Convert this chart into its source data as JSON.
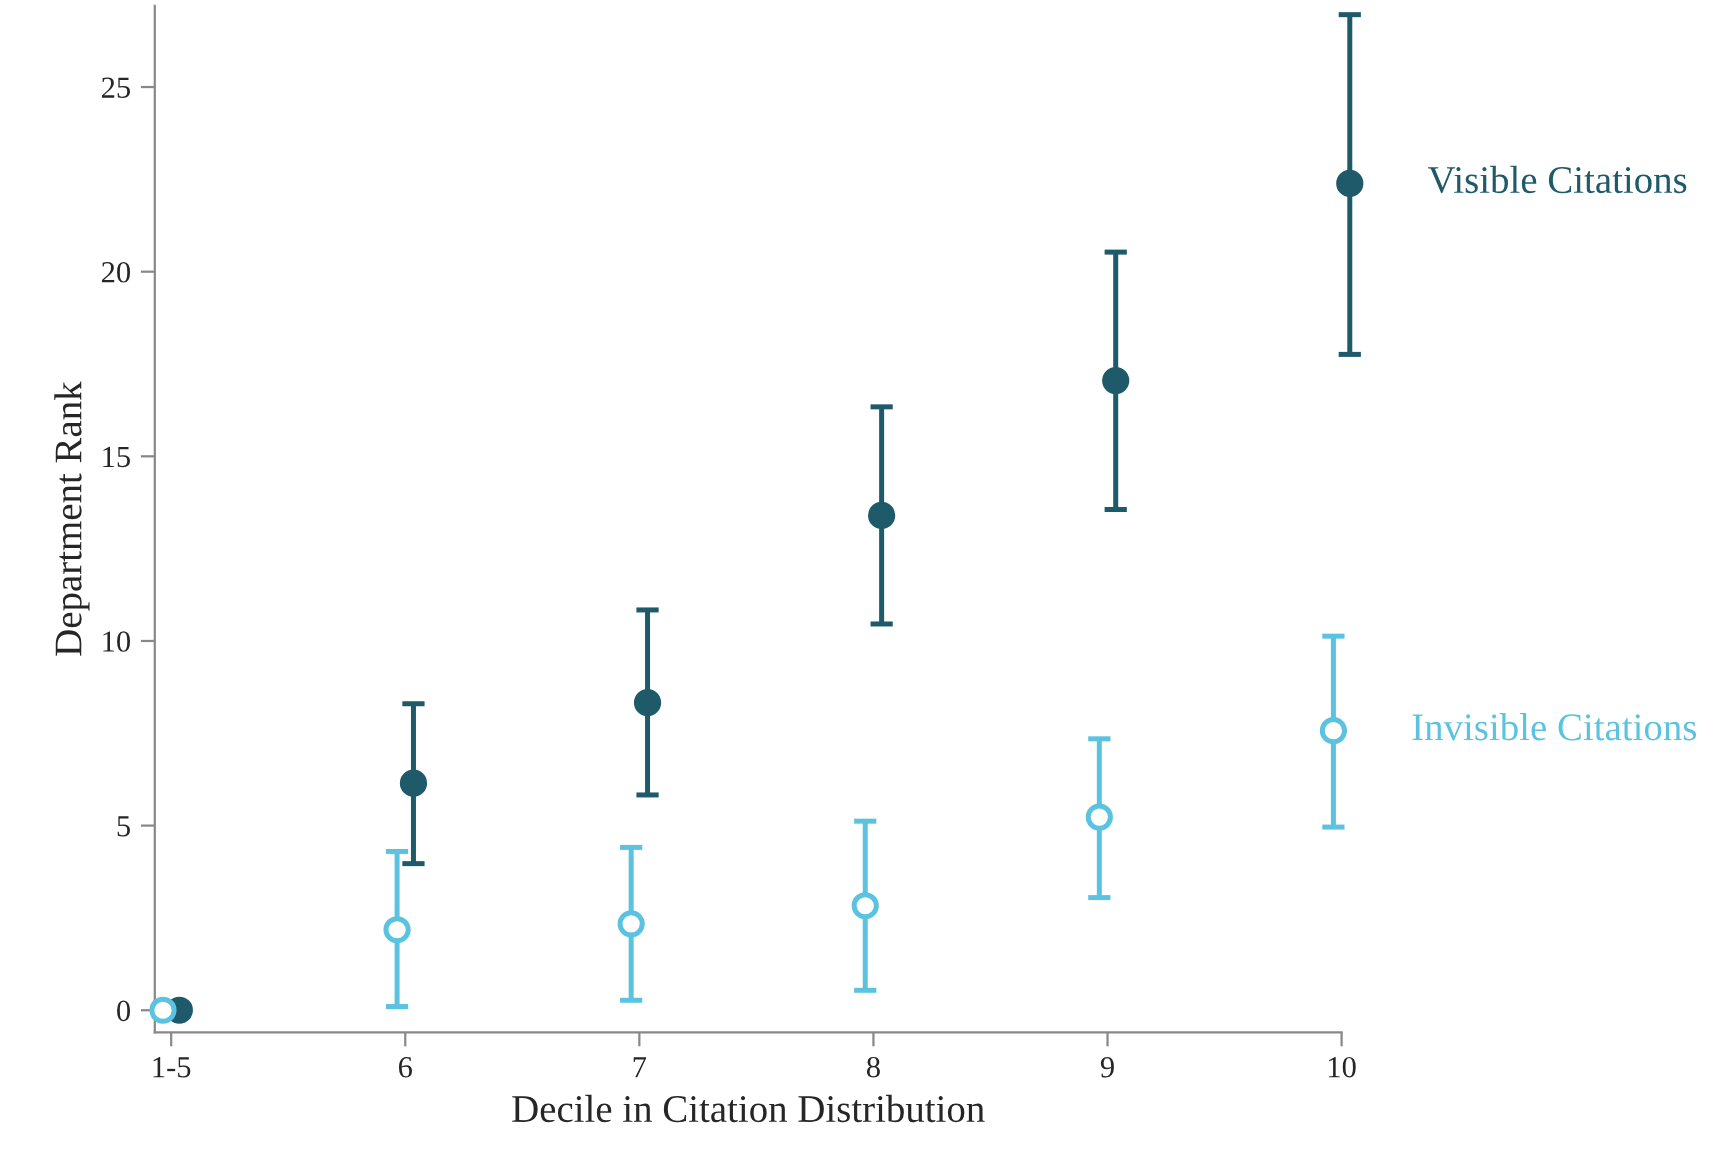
{
  "chart_data": {
    "type": "scatter",
    "xlabel": "Decile in Citation Distribution",
    "ylabel": "Department Rank",
    "categories": [
      "1-5",
      "6",
      "7",
      "8",
      "9",
      "10"
    ],
    "ylim": [
      -0.6,
      27.2
    ],
    "yticks": [
      0,
      5,
      10,
      15,
      20,
      25
    ],
    "grid": false,
    "legend": false,
    "series": [
      {
        "name": "Visible Citations",
        "color": "#1f5a6b",
        "marker": "circle",
        "values": [
          0,
          6.15,
          8.33,
          13.4,
          17.05,
          22.39
        ],
        "errors": [
          null,
          [
            3.97,
            8.3
          ],
          [
            5.83,
            10.84
          ],
          [
            10.46,
            16.34
          ],
          [
            13.56,
            20.53
          ],
          [
            17.76,
            26.96
          ]
        ]
      },
      {
        "name": "Invisible Citations",
        "color": "#5bc3e0",
        "marker": "circle_open",
        "values": [
          0,
          2.18,
          2.34,
          2.83,
          5.23,
          7.57
        ],
        "errors": [
          null,
          [
            0.1,
            4.3
          ],
          [
            0.27,
            4.41
          ],
          [
            0.54,
            5.12
          ],
          [
            3.05,
            7.35
          ],
          [
            4.96,
            10.13
          ]
        ]
      }
    ]
  }
}
